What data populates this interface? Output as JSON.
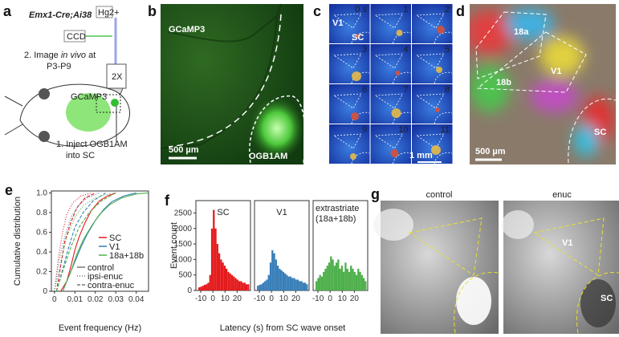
{
  "panel_labels": [
    "a",
    "b",
    "c",
    "d",
    "e",
    "f",
    "g"
  ],
  "panel_a": {
    "genotype": "Emx1-Cre;Ai38",
    "lamp": "Hg2+",
    "camera": "CCD",
    "step2": [
      "2. Image ",
      "in vivo",
      " at",
      "P3-P9"
    ],
    "objective": "2X",
    "indicator": "GCaMP3",
    "step1": [
      "1. Inject OGB1AM",
      "into SC"
    ]
  },
  "panel_b": {
    "indicator": "GCaMP3",
    "scale": "500 µm",
    "dye": "OGB1AM"
  },
  "panel_c": {
    "frames": [
      "0 s",
      "1",
      "2",
      "3",
      "4",
      "5",
      "6",
      "7",
      "8",
      "9",
      "10",
      "11"
    ],
    "area1": "V1",
    "area2": "SC",
    "scale": "1 mm"
  },
  "panel_d": {
    "areas": [
      "18a",
      "V1",
      "18b",
      "SC"
    ],
    "scale": "500 µm"
  },
  "chart_data": [
    {
      "type": "line",
      "ylabel": "Cumulative distribution",
      "xlabel": "Event frequency (Hz)",
      "xlim": [
        -0.0015,
        0.046
      ],
      "ylim": [
        0,
        1.02
      ],
      "xticks": [
        0,
        0.01,
        0.02,
        0.03,
        0.04
      ],
      "yticks": [
        0,
        0.2,
        0.4,
        0.6,
        0.8,
        {
          "value": 1,
          "label": "1.0"
        }
      ],
      "line_styles": [
        {
          "name": "control",
          "dash": "solid"
        },
        {
          "name": "ipsi-enuc",
          "dash": "dotted"
        },
        {
          "name": "contra-enuc",
          "dash": "dashed"
        }
      ],
      "series": [
        {
          "name": "SC",
          "color": "#e41a1c",
          "curves": [
            {
              "x": [
                0.003,
                0.006,
                0.008,
                0.01,
                0.012,
                0.015,
                0.018,
                0.022,
                0.026,
                0.03
              ],
              "values": [
                0,
                0.1,
                0.25,
                0.42,
                0.55,
                0.7,
                0.82,
                0.92,
                0.97,
                1
              ]
            },
            {
              "x": [
                0,
                0.002,
                0.004,
                0.006,
                0.009,
                0.013,
                0.018
              ],
              "values": [
                0,
                0.35,
                0.6,
                0.78,
                0.9,
                0.97,
                1
              ]
            },
            {
              "x": [
                0.001,
                0.003,
                0.005,
                0.008,
                0.011,
                0.015,
                0.02
              ],
              "values": [
                0,
                0.25,
                0.5,
                0.7,
                0.85,
                0.95,
                1
              ]
            }
          ]
        },
        {
          "name": "V1",
          "color": "#377eb8",
          "curves": [
            {
              "x": [
                0.004,
                0.007,
                0.01,
                0.013,
                0.016,
                0.02,
                0.024,
                0.028,
                0.034,
                0.04
              ],
              "values": [
                0,
                0.15,
                0.3,
                0.45,
                0.58,
                0.72,
                0.83,
                0.91,
                0.97,
                1
              ]
            },
            {
              "x": [
                0,
                0.002,
                0.005,
                0.008,
                0.012,
                0.016,
                0.022
              ],
              "values": [
                0,
                0.3,
                0.55,
                0.75,
                0.88,
                0.95,
                1
              ]
            },
            {
              "x": [
                0.001,
                0.004,
                0.007,
                0.01,
                0.014,
                0.019,
                0.025
              ],
              "values": [
                0,
                0.22,
                0.45,
                0.65,
                0.8,
                0.92,
                1
              ]
            }
          ]
        },
        {
          "name": "18a+18b",
          "color": "#4daf4a",
          "curves": [
            {
              "x": [
                0.004,
                0.008,
                0.011,
                0.014,
                0.018,
                0.022,
                0.027,
                0.033,
                0.04,
                0.046
              ],
              "values": [
                0,
                0.2,
                0.38,
                0.52,
                0.66,
                0.78,
                0.88,
                0.95,
                0.99,
                1
              ]
            },
            {
              "x": [
                0,
                0.003,
                0.006,
                0.01,
                0.014,
                0.02,
                0.028
              ],
              "values": [
                0,
                0.3,
                0.55,
                0.75,
                0.87,
                0.95,
                1
              ]
            },
            {
              "x": [
                0.001,
                0.004,
                0.008,
                0.012,
                0.017,
                0.023,
                0.03
              ],
              "values": [
                0,
                0.2,
                0.45,
                0.65,
                0.8,
                0.92,
                1
              ]
            }
          ]
        }
      ]
    },
    {
      "type": "histogram",
      "ylabel": "Event count",
      "xlabel": "Latency (s) from SC wave onset",
      "xlim": [
        -14,
        31
      ],
      "ylim": [
        0,
        2900
      ],
      "xticks": [
        -10,
        0,
        10,
        20
      ],
      "yticks": [
        0,
        500,
        1000,
        1500,
        2000,
        2500
      ],
      "bins": [
        -12,
        -10.5,
        -9,
        -7.5,
        -6,
        -4.5,
        -3,
        -1.5,
        0,
        1.5,
        3,
        4.5,
        6,
        7.5,
        9,
        10.5,
        12,
        13.5,
        15,
        16.5,
        18,
        19.5,
        21,
        22.5,
        24,
        25.5,
        27,
        28.5,
        30
      ],
      "series": [
        {
          "name": "SC",
          "color": "#e41a1c",
          "values": [
            100,
            120,
            150,
            180,
            200,
            250,
            500,
            2000,
            2600,
            2000,
            1500,
            1200,
            1000,
            900,
            800,
            700,
            600,
            550,
            500,
            450,
            400,
            350,
            300,
            300,
            250,
            250,
            200,
            200
          ]
        },
        {
          "name": "V1",
          "color": "#377eb8",
          "values": [
            150,
            180,
            200,
            250,
            300,
            350,
            500,
            900,
            1300,
            1200,
            1000,
            800,
            700,
            650,
            600,
            550,
            500,
            450,
            450,
            400,
            400,
            350,
            350,
            300,
            300,
            250,
            250,
            200
          ]
        },
        {
          "name": [
            "extrastriate",
            "(18a+18b)"
          ],
          "color": "#4daf4a",
          "values": [
            300,
            400,
            500,
            450,
            600,
            700,
            800,
            900,
            1100,
            1000,
            800,
            900,
            1000,
            700,
            800,
            600,
            900,
            700,
            600,
            800,
            700,
            600,
            500,
            700,
            600,
            500,
            400,
            300
          ]
        }
      ]
    }
  ],
  "panel_g": {
    "conditions": [
      "control",
      "enuc"
    ],
    "area1": "V1",
    "area2": "SC"
  }
}
